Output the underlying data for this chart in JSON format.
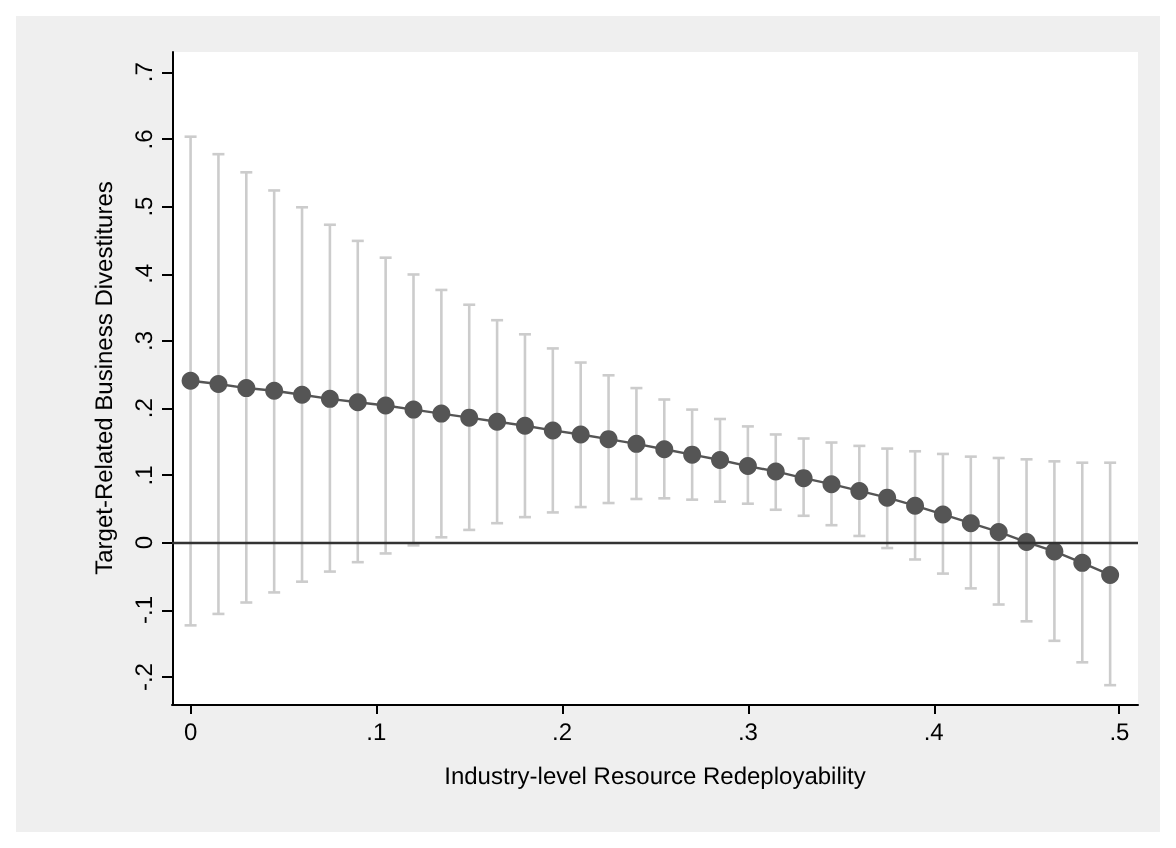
{
  "chart_data": {
    "type": "line",
    "xlabel": "Industry-level Resource Redeployability",
    "ylabel": "Target-Related Business Divestitures",
    "x": [
      0,
      0.015,
      0.03,
      0.045,
      0.06,
      0.075,
      0.09,
      0.105,
      0.12,
      0.135,
      0.15,
      0.165,
      0.18,
      0.195,
      0.21,
      0.225,
      0.24,
      0.255,
      0.27,
      0.285,
      0.3,
      0.315,
      0.33,
      0.345,
      0.36,
      0.375,
      0.39,
      0.405,
      0.42,
      0.435,
      0.45,
      0.465,
      0.48,
      0.495
    ],
    "series": [
      {
        "color": "#555555",
        "values": [
          0.241,
          0.236,
          0.23,
          0.226,
          0.22,
          0.214,
          0.209,
          0.204,
          0.198,
          0.192,
          0.186,
          0.18,
          0.174,
          0.167,
          0.161,
          0.154,
          0.147,
          0.139,
          0.131,
          0.123,
          0.114,
          0.106,
          0.096,
          0.087,
          0.077,
          0.067,
          0.055,
          0.042,
          0.029,
          0.016,
          0.001,
          -0.013,
          -0.03,
          -0.048
        ],
        "errors": [
          [
            -0.123,
            0.604
          ],
          [
            -0.106,
            0.578
          ],
          [
            -0.089,
            0.551
          ],
          [
            -0.074,
            0.524
          ],
          [
            -0.058,
            0.499
          ],
          [
            -0.043,
            0.473
          ],
          [
            -0.029,
            0.449
          ],
          [
            -0.016,
            0.424
          ],
          [
            -0.004,
            0.399
          ],
          [
            0.008,
            0.376
          ],
          [
            0.019,
            0.354
          ],
          [
            0.029,
            0.331
          ],
          [
            0.038,
            0.31
          ],
          [
            0.045,
            0.289
          ],
          [
            0.053,
            0.268
          ],
          [
            0.059,
            0.249
          ],
          [
            0.065,
            0.23
          ],
          [
            0.066,
            0.213
          ],
          [
            0.064,
            0.198
          ],
          [
            0.061,
            0.184
          ],
          [
            0.058,
            0.173
          ],
          [
            0.049,
            0.161
          ],
          [
            0.04,
            0.155
          ],
          [
            0.026,
            0.149
          ],
          [
            0.01,
            0.144
          ],
          [
            -0.008,
            0.14
          ],
          [
            -0.025,
            0.136
          ],
          [
            -0.046,
            0.132
          ],
          [
            -0.068,
            0.128
          ],
          [
            -0.092,
            0.126
          ],
          [
            -0.117,
            0.124
          ],
          [
            -0.146,
            0.121
          ],
          [
            -0.178,
            0.119
          ],
          [
            -0.212,
            0.119
          ]
        ]
      }
    ],
    "marker": "circle",
    "xlim": [
      -0.01,
      0.51
    ],
    "xticks": [
      {
        "value": 0,
        "label": "0"
      },
      {
        "value": 0.1,
        "label": ".1"
      },
      {
        "value": 0.2,
        "label": ".2"
      },
      {
        "value": 0.3,
        "label": ".3"
      },
      {
        "value": 0.4,
        "label": ".4"
      },
      {
        "value": 0.5,
        "label": ".5"
      }
    ],
    "ylim": [
      -0.24,
      0.73
    ],
    "yticks": [
      {
        "value": -0.2,
        "label": "-.2"
      },
      {
        "value": -0.1,
        "label": "-.1"
      },
      {
        "value": 0,
        "label": "0"
      },
      {
        "value": 0.1,
        "label": ".1"
      },
      {
        "value": 0.2,
        "label": ".2"
      },
      {
        "value": 0.3,
        "label": ".3"
      },
      {
        "value": 0.4,
        "label": ".4"
      },
      {
        "value": 0.5,
        "label": ".5"
      },
      {
        "value": 0.6,
        "label": ".6"
      },
      {
        "value": 0.7,
        "label": ".7"
      }
    ],
    "ref_lines": [
      {
        "axis": "y",
        "value": 0,
        "color": "#333333"
      }
    ],
    "grid": false
  }
}
